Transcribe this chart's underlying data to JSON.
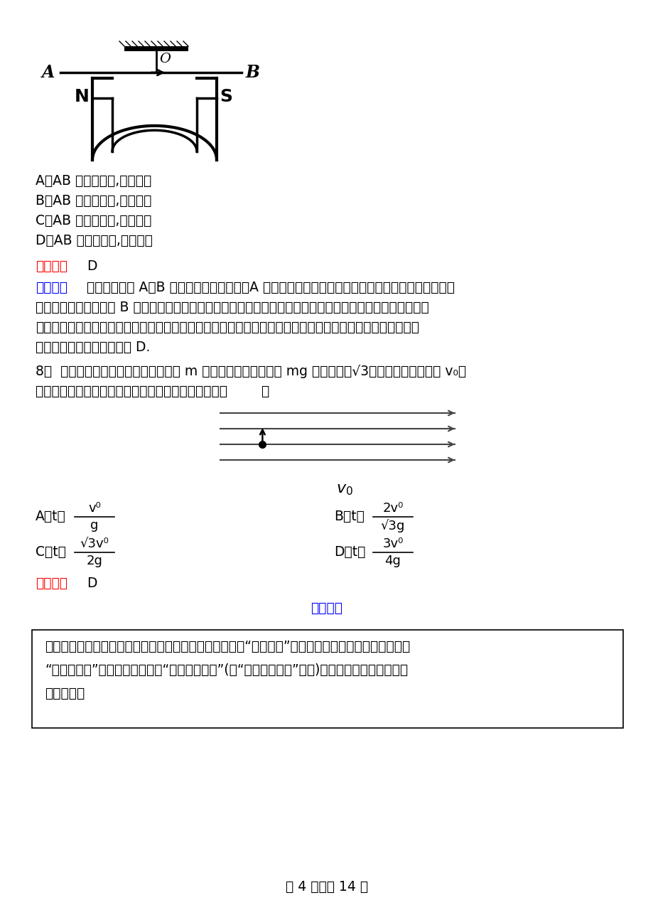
{
  "bg_color": "#ffffff",
  "text_color": "#000000",
  "red_color": "#ff0000",
  "blue_color": "#0000ff",
  "figsize": [
    9.2,
    12.73
  ],
  "dpi": 100,
  "font_size_main": 13.5,
  "font_size_small": 12.5,
  "line1_A": "A．AB 顺时针转动,张力变大",
  "line1_B": "B．AB 逆时针转动,张力变小",
  "line1_C": "C．AB 顺时针转动,张力变小",
  "line1_D": "D．AB 逆时针转动,张力变大",
  "ans1_label": "【答案】",
  "ans1_val": "D",
  "jiexi1_label": "【解析】",
  "jiexi1_text1": "在导线上靠近 A、B 两端各取一个电流元，A 处的电流元所在磁场向上穿过导线，根据左手定则，该",
  "jiexi1_text2": "处导线受力向外，同理 B 处电流元受安培力向里，所以从上向下看，导线逆时针转动，同时，由于导线转动，",
  "jiexi1_text3": "所以电流在垂直纸面方向有了投影，对于此有效长度来说，磁感线是向右穿过导线，再根据左手定则可判定导",
  "jiexi1_text4": "线有向下运动的趋势，故选 D.",
  "q8_text1": "8．  在水平向右的匀强电场中，质量为 m 的带正电质点所受重力 mg 是电场力的√3倍．现将其以初速度 v₀竖",
  "q8_text2": "直向上抛出，则从抛出到速度最小时所经历的时间为（        ）",
  "q8_A_pre": "A．t＝",
  "q8_A_num": "v⁰",
  "q8_A_den": "g",
  "q8_B_pre": "B．t＝",
  "q8_B_num": "2v⁰",
  "q8_B_den": "√3g",
  "q8_C_pre": "C．t＝",
  "q8_C_num": "√3v⁰",
  "q8_C_den": "2g",
  "q8_D_pre": "D．t＝",
  "q8_D_num": "3v⁰",
  "q8_D_den": "4g",
  "ans2_label": "【答案】",
  "ans2_val": "D",
  "jiexi2_label": "【解析】",
  "box_text1": "【名师解析】用等效法求解：将所受重力和电场力等效为“新的重力”．质点在场中做类斜抛运动，到达",
  "box_text2": "“物理最高点”时，速度最小，沿“物理水平方向”(与“物理竖直方向”垂直)．该过程中速度矢量变化",
  "box_text3": "如图所示．",
  "footer": "第 4 页，共 14 页"
}
